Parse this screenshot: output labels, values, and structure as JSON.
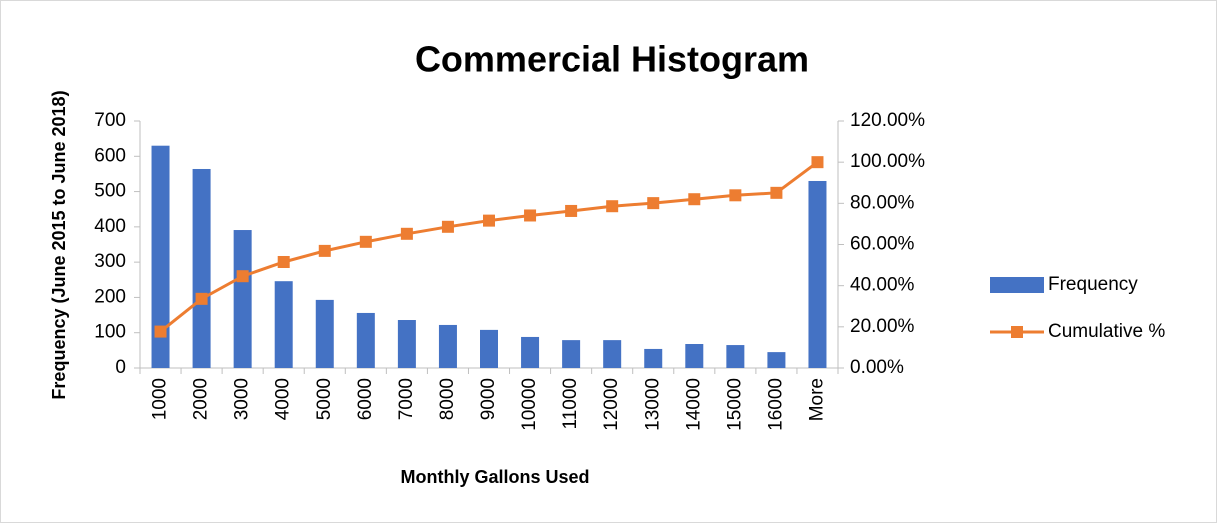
{
  "chart_data": {
    "type": "bar_line",
    "title": "Commercial Histogram",
    "x_label": "Monthly Gallons Used",
    "y_label": "Frequency (June 2015 to June 2018)",
    "categories": [
      "1000",
      "2000",
      "3000",
      "4000",
      "5000",
      "6000",
      "7000",
      "8000",
      "9000",
      "10000",
      "11000",
      "12000",
      "13000",
      "14000",
      "15000",
      "16000",
      "More"
    ],
    "series": [
      {
        "name": "Frequency",
        "type": "bar",
        "color": "#4472c4",
        "values": [
          630,
          564,
          391,
          246,
          193,
          156,
          136,
          122,
          108,
          88,
          79,
          79,
          54,
          68,
          65,
          45,
          530
        ]
      },
      {
        "name": "Cumulative %",
        "type": "line",
        "axis": "y2",
        "color": "#ed7d31",
        "values": [
          17.7,
          33.6,
          44.6,
          51.5,
          56.9,
          61.3,
          65.2,
          68.6,
          71.6,
          74.1,
          76.3,
          78.6,
          80.1,
          82.0,
          83.9,
          85.1,
          100
        ]
      }
    ],
    "ylim": [
      0,
      700
    ],
    "yticks": [
      0,
      100,
      200,
      300,
      400,
      500,
      600,
      700
    ],
    "y2lim": [
      0,
      120
    ],
    "y2ticks": [
      {
        "value": 0,
        "label": "0.00%"
      },
      {
        "value": 20,
        "label": "20.00%"
      },
      {
        "value": 40,
        "label": "40.00%"
      },
      {
        "value": 60,
        "label": "60.00%"
      },
      {
        "value": 80,
        "label": "80.00%"
      },
      {
        "value": 100,
        "label": "100.00%"
      },
      {
        "value": 120,
        "label": "120.00%"
      }
    ],
    "grid": false,
    "legend": "right"
  }
}
